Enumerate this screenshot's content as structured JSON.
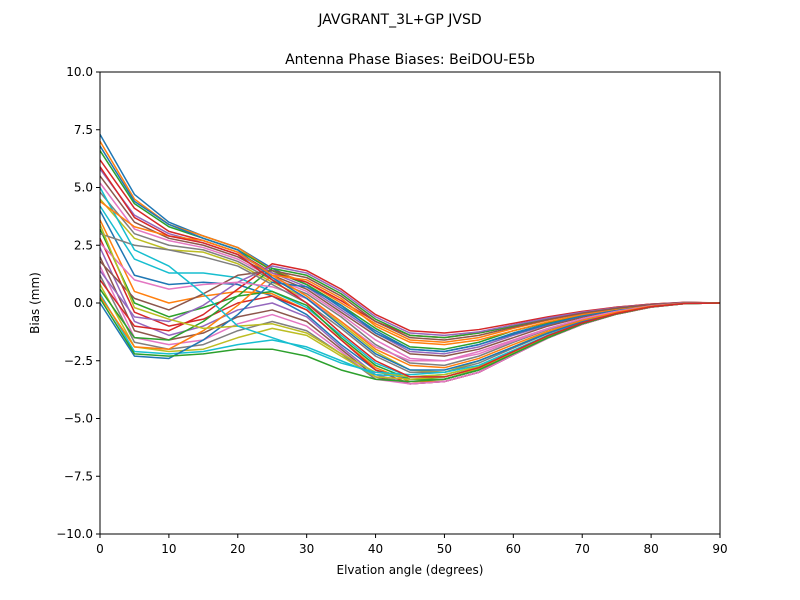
{
  "chart_data": {
    "type": "line",
    "suptitle": "JAVGRANT_3L+GP  JVSD",
    "title": "Antenna Phase Biases: BeiDOU-E5b",
    "xlabel": "Elvation angle (degrees)",
    "ylabel": "Bias (mm)",
    "xlim": [
      0,
      90
    ],
    "ylim": [
      -10,
      10
    ],
    "x": [
      0,
      5,
      10,
      15,
      20,
      25,
      30,
      35,
      40,
      45,
      50,
      55,
      60,
      65,
      70,
      75,
      80,
      85,
      90
    ],
    "xticks": [
      0,
      10,
      20,
      30,
      40,
      50,
      60,
      70,
      80,
      90
    ],
    "xtick_labels": [
      "0",
      "10",
      "20",
      "30",
      "40",
      "50",
      "60",
      "70",
      "80",
      "90"
    ],
    "yticks": [
      -10,
      -7.5,
      -5,
      -2.5,
      0,
      2.5,
      5,
      7.5,
      10
    ],
    "ytick_labels": [
      "−10.0",
      "−7.5",
      "−5.0",
      "−2.5",
      "0.0",
      "2.5",
      "5.0",
      "7.5",
      "10.0"
    ],
    "grid": false,
    "legend": "none",
    "colors": [
      "#1f77b4",
      "#ff7f0e",
      "#2ca02c",
      "#d62728",
      "#9467bd",
      "#8c564b",
      "#e377c2",
      "#7f7f7f",
      "#bcbd22",
      "#17becf"
    ],
    "series": [
      {
        "values": [
          7.3,
          4.7,
          3.5,
          2.9,
          2.4,
          1.5,
          0.8,
          -0.2,
          -1.2,
          -2.0,
          -2.1,
          -1.8,
          -1.3,
          -0.9,
          -0.55,
          -0.3,
          -0.1,
          0.0,
          0.0
        ]
      },
      {
        "values": [
          7.0,
          4.5,
          3.4,
          2.9,
          2.4,
          1.4,
          0.9,
          0.0,
          -0.9,
          -1.6,
          -1.7,
          -1.5,
          -1.1,
          -0.75,
          -0.45,
          -0.2,
          -0.05,
          0.02,
          0.0
        ]
      },
      {
        "values": [
          6.6,
          4.3,
          3.3,
          2.8,
          2.3,
          1.4,
          0.8,
          -0.1,
          -1.1,
          -1.9,
          -2.0,
          -1.7,
          -1.2,
          -0.85,
          -0.5,
          -0.25,
          -0.08,
          0.0,
          0.0
        ]
      },
      {
        "values": [
          6.2,
          4.1,
          3.1,
          2.7,
          2.2,
          1.3,
          0.9,
          0.1,
          -0.8,
          -1.4,
          -1.5,
          -1.3,
          -1.0,
          -0.65,
          -0.4,
          -0.18,
          -0.05,
          0.03,
          0.0
        ]
      },
      {
        "values": [
          5.8,
          3.8,
          3.0,
          2.6,
          2.1,
          1.3,
          0.7,
          -0.3,
          -1.3,
          -2.1,
          -2.2,
          -1.9,
          -1.4,
          -0.95,
          -0.6,
          -0.3,
          -0.1,
          0.0,
          0.0
        ]
      },
      {
        "values": [
          5.5,
          3.5,
          2.8,
          2.5,
          2.0,
          1.2,
          0.6,
          -0.4,
          -1.4,
          -2.2,
          -2.3,
          -2.0,
          -1.5,
          -1.0,
          -0.62,
          -0.32,
          -0.1,
          0.0,
          0.0
        ]
      },
      {
        "values": [
          5.2,
          3.2,
          2.7,
          2.4,
          1.9,
          1.1,
          0.5,
          -0.5,
          -1.6,
          -2.4,
          -2.5,
          -2.1,
          -1.6,
          -1.1,
          -0.68,
          -0.35,
          -0.12,
          0.0,
          0.0
        ]
      },
      {
        "values": [
          4.8,
          3.0,
          2.5,
          2.3,
          1.8,
          1.0,
          0.4,
          -0.6,
          -1.8,
          -2.6,
          -2.7,
          -2.3,
          -1.7,
          -1.15,
          -0.72,
          -0.38,
          -0.13,
          -0.01,
          0.0
        ]
      },
      {
        "values": [
          4.5,
          2.8,
          2.3,
          2.2,
          1.7,
          0.9,
          0.2,
          -0.9,
          -2.1,
          -2.9,
          -3.0,
          -2.5,
          -1.9,
          -1.25,
          -0.78,
          -0.4,
          -0.14,
          -0.01,
          0.0
        ]
      },
      {
        "values": [
          4.2,
          1.9,
          1.3,
          1.3,
          1.1,
          0.5,
          -0.2,
          -1.4,
          -2.6,
          -3.2,
          -3.2,
          -2.8,
          -2.1,
          -1.4,
          -0.85,
          -0.45,
          -0.16,
          -0.02,
          0.0
        ]
      },
      {
        "values": [
          4.0,
          1.2,
          0.8,
          0.9,
          0.8,
          0.3,
          -0.5,
          -1.8,
          -2.9,
          -3.3,
          -3.3,
          -2.9,
          -2.15,
          -1.45,
          -0.88,
          -0.46,
          -0.17,
          -0.02,
          0.0
        ]
      },
      {
        "values": [
          3.6,
          0.5,
          0.0,
          0.3,
          0.5,
          0.4,
          -0.3,
          -1.6,
          -2.8,
          -3.4,
          -3.4,
          -3.0,
          -2.2,
          -1.5,
          -0.9,
          -0.48,
          -0.18,
          -0.02,
          0.0
        ]
      },
      {
        "values": [
          3.2,
          0.0,
          -0.6,
          -0.2,
          0.3,
          0.5,
          -0.1,
          -1.5,
          -2.7,
          -3.3,
          -3.3,
          -2.9,
          -2.2,
          -1.48,
          -0.9,
          -0.47,
          -0.17,
          -0.02,
          0.0
        ]
      },
      {
        "values": [
          2.8,
          -0.4,
          -1.0,
          -0.7,
          0.0,
          0.3,
          -0.3,
          -1.6,
          -2.9,
          -3.5,
          -3.4,
          -3.0,
          -2.25,
          -1.52,
          -0.92,
          -0.48,
          -0.18,
          -0.02,
          0.0
        ]
      },
      {
        "values": [
          2.4,
          -0.8,
          -1.4,
          -1.0,
          -0.3,
          0.0,
          -0.6,
          -1.9,
          -3.1,
          -3.5,
          -3.4,
          -3.0,
          -2.25,
          -1.52,
          -0.92,
          -0.48,
          -0.18,
          -0.02,
          0.0
        ]
      },
      {
        "values": [
          2.0,
          -1.2,
          -1.6,
          -1.3,
          -0.6,
          -0.3,
          -0.8,
          -2.0,
          -3.2,
          -3.5,
          -3.4,
          -3.0,
          -2.25,
          -1.52,
          -0.92,
          -0.48,
          -0.18,
          -0.02,
          0.0
        ]
      },
      {
        "values": [
          1.6,
          -1.5,
          -1.8,
          -1.6,
          -0.9,
          -0.5,
          -1.0,
          -2.1,
          -3.3,
          -3.5,
          -3.4,
          -3.0,
          -2.25,
          -1.52,
          -0.92,
          -0.48,
          -0.18,
          -0.02,
          0.0
        ]
      },
      {
        "values": [
          1.2,
          -1.7,
          -2.0,
          -1.8,
          -1.2,
          -0.8,
          -1.2,
          -2.2,
          -3.3,
          -3.4,
          -3.3,
          -2.9,
          -2.2,
          -1.5,
          -0.9,
          -0.47,
          -0.17,
          -0.02,
          0.0
        ]
      },
      {
        "values": [
          0.8,
          -1.9,
          -2.1,
          -2.0,
          -1.5,
          -1.1,
          -1.4,
          -2.3,
          -3.2,
          -3.3,
          -3.2,
          -2.85,
          -2.15,
          -1.46,
          -0.88,
          -0.46,
          -0.17,
          -0.02,
          0.0
        ]
      },
      {
        "values": [
          0.4,
          -2.1,
          -2.2,
          -2.1,
          -1.8,
          -1.6,
          -1.9,
          -2.5,
          -3.1,
          -3.2,
          -3.1,
          -2.75,
          -2.1,
          -1.42,
          -0.86,
          -0.45,
          -0.16,
          -0.02,
          0.0
        ]
      },
      {
        "values": [
          0.0,
          -2.3,
          -2.4,
          -1.6,
          -0.5,
          0.9,
          0.7,
          -0.1,
          -1.3,
          -2.0,
          -2.1,
          -1.8,
          -1.35,
          -0.92,
          -0.56,
          -0.3,
          -0.1,
          0.0,
          0.0
        ]
      },
      {
        "values": [
          0.3,
          -1.9,
          -2.0,
          -1.2,
          -0.1,
          1.2,
          1.0,
          0.2,
          -1.0,
          -1.7,
          -1.8,
          -1.6,
          -1.2,
          -0.82,
          -0.5,
          -0.26,
          -0.08,
          0.01,
          0.0
        ]
      },
      {
        "values": [
          0.6,
          -1.5,
          -1.6,
          -0.8,
          0.3,
          1.5,
          1.2,
          0.4,
          -0.7,
          -1.4,
          -1.5,
          -1.3,
          -1.0,
          -0.7,
          -0.42,
          -0.22,
          -0.06,
          0.02,
          0.0
        ]
      },
      {
        "values": [
          1.0,
          -1.0,
          -1.2,
          -0.5,
          0.6,
          1.7,
          1.4,
          0.6,
          -0.5,
          -1.2,
          -1.3,
          -1.15,
          -0.88,
          -0.6,
          -0.36,
          -0.18,
          -0.05,
          0.02,
          0.0
        ]
      },
      {
        "values": [
          1.4,
          -0.6,
          -0.8,
          -0.1,
          0.9,
          1.6,
          1.3,
          0.5,
          -0.6,
          -1.3,
          -1.4,
          -1.25,
          -0.95,
          -0.65,
          -0.4,
          -0.2,
          -0.06,
          0.02,
          0.0
        ]
      },
      {
        "values": [
          1.8,
          0.2,
          -0.3,
          0.4,
          1.2,
          1.4,
          1.1,
          0.3,
          -0.8,
          -1.5,
          -1.6,
          -1.4,
          -1.05,
          -0.72,
          -0.44,
          -0.22,
          -0.07,
          0.01,
          0.0
        ]
      },
      {
        "values": [
          2.6,
          1.0,
          0.6,
          0.8,
          0.9,
          0.7,
          0.2,
          -0.8,
          -1.9,
          -2.5,
          -2.5,
          -2.2,
          -1.65,
          -1.12,
          -0.68,
          -0.36,
          -0.12,
          0.0,
          0.0
        ]
      },
      {
        "values": [
          3.0,
          2.5,
          2.3,
          2.0,
          1.6,
          0.8,
          0.0,
          -1.1,
          -2.3,
          -3.0,
          -3.0,
          -2.6,
          -1.95,
          -1.32,
          -0.8,
          -0.42,
          -0.15,
          -0.01,
          0.0
        ]
      },
      {
        "values": [
          3.4,
          -0.2,
          -0.7,
          -1.1,
          -1.0,
          -0.9,
          -1.3,
          -2.2,
          -3.0,
          -3.2,
          -3.1,
          -2.75,
          -2.1,
          -1.42,
          -0.86,
          -0.45,
          -0.16,
          -0.02,
          0.0
        ]
      },
      {
        "values": [
          5.0,
          2.3,
          1.6,
          0.4,
          -1.0,
          -1.5,
          -2.0,
          -2.6,
          -3.0,
          -3.1,
          -3.0,
          -2.7,
          -2.05,
          -1.4,
          -0.85,
          -0.44,
          -0.16,
          -0.02,
          0.0
        ]
      },
      {
        "values": [
          6.8,
          4.4,
          3.4,
          2.8,
          2.3,
          1.1,
          0.2,
          -1.0,
          -2.2,
          -2.9,
          -2.9,
          -2.5,
          -1.9,
          -1.3,
          -0.8,
          -0.42,
          -0.15,
          -0.01,
          0.0
        ]
      },
      {
        "values": [
          4.4,
          3.3,
          2.9,
          2.7,
          2.2,
          1.2,
          0.3,
          -0.8,
          -2.0,
          -2.7,
          -2.8,
          -2.4,
          -1.8,
          -1.22,
          -0.75,
          -0.4,
          -0.14,
          -0.01,
          0.0
        ]
      },
      {
        "values": [
          0.2,
          -2.2,
          -2.3,
          -2.2,
          -2.0,
          -2.0,
          -2.3,
          -2.9,
          -3.3,
          -3.4,
          -3.3,
          -2.9,
          -2.2,
          -1.5,
          -0.9,
          -0.47,
          -0.17,
          -0.02,
          0.0
        ]
      },
      {
        "values": [
          5.9,
          3.7,
          2.9,
          2.6,
          2.1,
          1.0,
          0.0,
          -1.3,
          -2.5,
          -3.2,
          -3.2,
          -2.8,
          -2.1,
          -1.42,
          -0.86,
          -0.45,
          -0.16,
          -0.02,
          0.0
        ]
      }
    ]
  }
}
